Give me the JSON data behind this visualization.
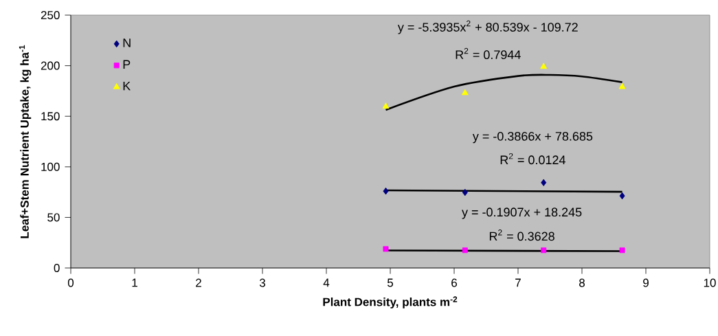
{
  "chart_data": {
    "type": "scatter",
    "xlabel": "Plant Density, plants m$^{-2}$",
    "ylabel": "Leaf+Stem Nutrient Uptake, kg ha$^{-1}$",
    "xlim": [
      0,
      10
    ],
    "xticks": [
      0,
      1,
      2,
      3,
      4,
      5,
      6,
      7,
      8,
      9,
      10
    ],
    "ylim": [
      0,
      250
    ],
    "yticks": [
      0,
      50,
      100,
      150,
      200,
      250
    ],
    "grid": false,
    "legend": "top left",
    "x": [
      4.93,
      6.17,
      7.4,
      8.63
    ],
    "series": [
      {
        "name": "N",
        "color": "#000080",
        "marker": "diamond",
        "values": [
          76,
          74.7,
          84.4,
          71.3
        ]
      },
      {
        "name": "P",
        "color": "#ff00ff",
        "marker": "square",
        "values": [
          18.8,
          17.5,
          17.5,
          17.5
        ]
      },
      {
        "name": "K",
        "color": "#ffff00",
        "marker": "triangle",
        "values": [
          159.6,
          173,
          199,
          179
        ]
      },
      {
        "type": "line",
        "color": "#000000",
        "marker": "none",
        "line_style": "solid",
        "x": [
          4.93,
          6,
          7,
          7.5,
          8,
          8.63
        ],
        "values": [
          156.3,
          179.3,
          189.8,
          190.9,
          189.4,
          183.7
        ]
      },
      {
        "type": "line",
        "color": "#000000",
        "marker": "none",
        "line_style": "solid",
        "x": [
          4.93,
          8.63
        ],
        "values": [
          76.8,
          75.3
        ]
      },
      {
        "type": "line",
        "color": "#000000",
        "marker": "none",
        "line_style": "solid",
        "x": [
          4.93,
          8.63
        ],
        "values": [
          17.3,
          16.6
        ]
      }
    ],
    "annotations": [
      "y = -5.3935x$^{2}$ + 80.539x - 109.72",
      "R$^{2}$ = 0.7944",
      "y = -0.3866x + 78.685",
      "R$^{2}$ = 0.0124",
      "y = -0.1907x + 18.245",
      "R$^{2}$ = 0.3628"
    ]
  }
}
